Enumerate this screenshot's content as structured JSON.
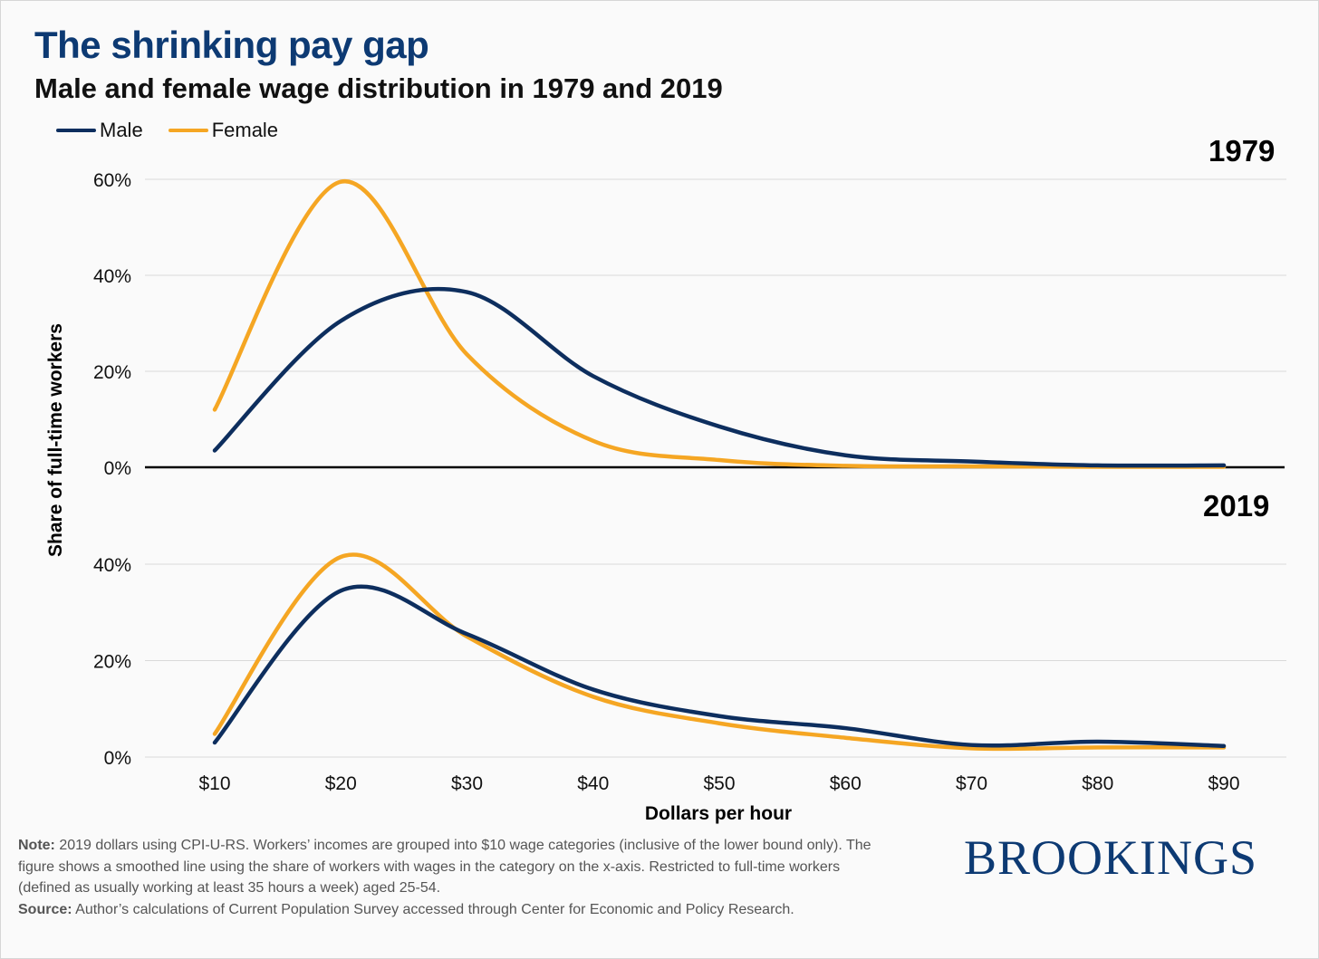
{
  "title": "The shrinking pay gap",
  "subtitle": "Male and female wage distribution in 1979 and 2019",
  "legend": [
    {
      "label": "Male",
      "color": "#0d2e5e"
    },
    {
      "label": "Female",
      "color": "#f5a623"
    }
  ],
  "colors": {
    "male": "#0d2e5e",
    "female": "#f5a623",
    "title": "#0d3a73"
  },
  "note": {
    "note_label": "Note:",
    "note_text": "2019 dollars using CPI-U-RS. Workers’ incomes are grouped into $10 wage categories (inclusive of the lower bound only). The figure shows a smoothed line using the share of workers with wages in the category on the x-axis. Restricted to full-time workers (defined as usually working at least 35 hours a week) aged 25-54.",
    "source_label": "Source:",
    "source_text": "Author’s calculations of Current Population Survey accessed through Center for Economic and Policy Research."
  },
  "logo": "BROOKINGS",
  "chart_data": [
    {
      "type": "line",
      "panel": "1979",
      "x": [
        10,
        20,
        30,
        40,
        50,
        60,
        70,
        80,
        90
      ],
      "series": [
        {
          "name": "Male",
          "values": [
            3.5,
            30.5,
            36.5,
            19,
            8.5,
            2.5,
            1.2,
            0.4,
            0.4
          ]
        },
        {
          "name": "Female",
          "values": [
            12,
            59.5,
            23.5,
            5.5,
            1.5,
            0.3,
            0.2,
            0.1,
            0.1
          ]
        }
      ],
      "ylim": [
        0,
        60
      ],
      "yticks": [
        "0%",
        "20%",
        "40%",
        "60%"
      ]
    },
    {
      "type": "line",
      "panel": "2019",
      "x": [
        10,
        20,
        30,
        40,
        50,
        60,
        70,
        80,
        90
      ],
      "series": [
        {
          "name": "Male",
          "values": [
            3,
            34.5,
            25.5,
            14,
            8.5,
            6,
            2.5,
            3.2,
            2.3
          ]
        },
        {
          "name": "Female",
          "values": [
            4.8,
            41.5,
            25,
            12.5,
            7,
            4,
            1.8,
            2,
            2
          ]
        }
      ],
      "ylim": [
        0,
        40
      ],
      "yticks": [
        "0%",
        "20%",
        "40%"
      ]
    }
  ],
  "axes": {
    "ylabel": "Share of full-time workers",
    "xlabel": "Dollars per hour",
    "xticks": [
      "$10",
      "$20",
      "$30",
      "$40",
      "$50",
      "$60",
      "$70",
      "$80",
      "$90"
    ]
  }
}
